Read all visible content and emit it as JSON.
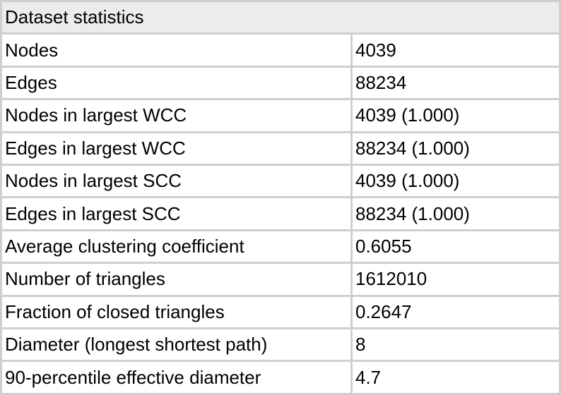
{
  "table": {
    "title": "Dataset statistics",
    "rows": [
      [
        "Nodes",
        "4039"
      ],
      [
        "Edges",
        "88234"
      ],
      [
        "Nodes in largest WCC",
        "4039 (1.000)"
      ],
      [
        "Edges in largest WCC",
        "88234 (1.000)"
      ],
      [
        "Nodes in largest SCC",
        "4039 (1.000)"
      ],
      [
        "Edges in largest SCC",
        "88234 (1.000)"
      ],
      [
        "Average clustering coefficient",
        "0.6055"
      ],
      [
        "Number of triangles",
        "1612010"
      ],
      [
        "Fraction of closed triangles",
        "0.2647"
      ],
      [
        "Diameter (longest shortest path)",
        "8"
      ],
      [
        "90-percentile effective diameter",
        "4.7"
      ]
    ]
  }
}
